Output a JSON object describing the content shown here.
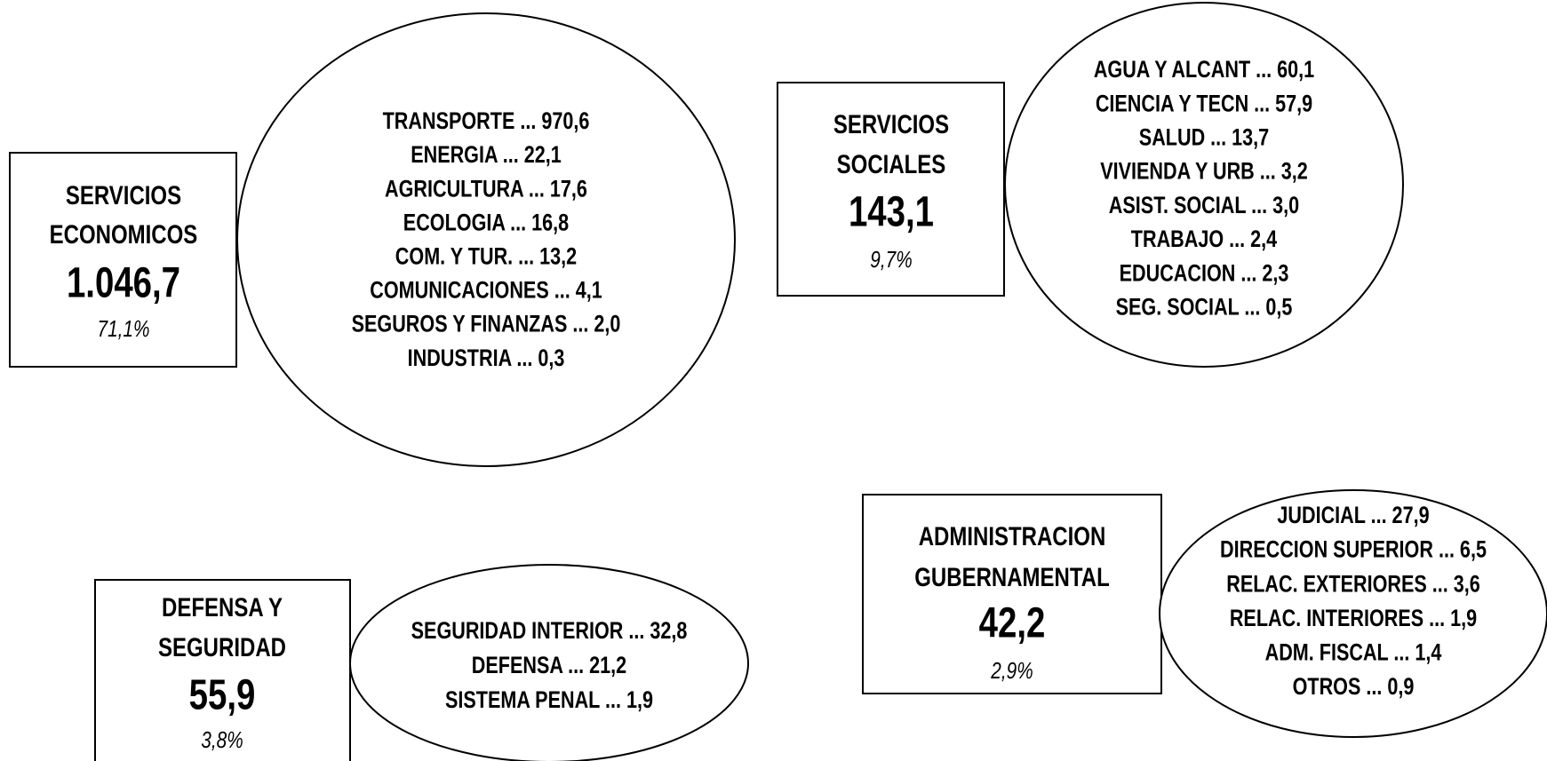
{
  "groups": [
    {
      "title": [
        "SERVICIOS",
        "ECONOMICOS"
      ],
      "total": "1.046,7",
      "percent": "71,1%",
      "items": [
        "TRANSPORTE ... 970,6",
        "ENERGIA ... 22,1",
        "AGRICULTURA ... 17,6",
        "ECOLOGIA ... 16,8",
        "COM. Y TUR. ... 13,2",
        "COMUNICACIONES ... 4,1",
        "SEGUROS Y FINANZAS ... 2,0",
        "INDUSTRIA ... 0,3"
      ]
    },
    {
      "title": [
        "SERVICIOS",
        "SOCIALES"
      ],
      "total": "143,1",
      "percent": "9,7%",
      "items": [
        "AGUA Y ALCANT ... 60,1",
        "CIENCIA Y TECN ... 57,9",
        "SALUD ... 13,7",
        "VIVIENDA Y URB ... 3,2",
        "ASIST. SOCIAL ... 3,0",
        "TRABAJO ... 2,4",
        "EDUCACION ... 2,3",
        "SEG. SOCIAL ... 0,5"
      ]
    },
    {
      "title": [
        "DEFENSA Y",
        "SEGURIDAD"
      ],
      "total": "55,9",
      "percent": "3,8%",
      "items": [
        "SEGURIDAD INTERIOR ... 32,8",
        "DEFENSA ... 21,2",
        "SISTEMA PENAL ... 1,9"
      ]
    },
    {
      "title": [
        "ADMINISTRACION",
        "GUBERNAMENTAL"
      ],
      "total": "42,2",
      "percent": "2,9%",
      "items": [
        "JUDICIAL ... 27,9",
        "DIRECCION SUPERIOR ... 6,5",
        "RELAC. EXTERIORES ... 3,6",
        "RELAC. INTERIORES ... 1,9",
        "ADM. FISCAL ... 1,4",
        "OTROS ... 0,9"
      ]
    }
  ]
}
